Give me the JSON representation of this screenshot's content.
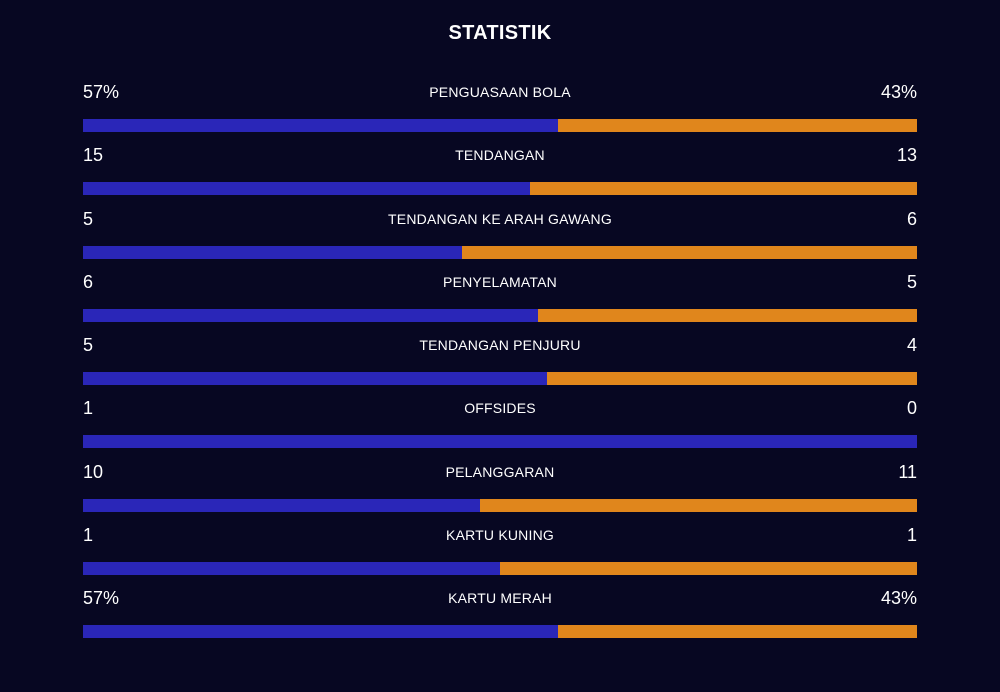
{
  "header": {
    "title": "STATISTIK"
  },
  "colors": {
    "background": "#070722",
    "home_bar": "#2a26b8",
    "away_bar": "#e0861c",
    "text": "#ffffff"
  },
  "stats": [
    {
      "label": "PENGUASAAN BOLA",
      "home": "57%",
      "away": "43%",
      "home_share": 0.57
    },
    {
      "label": "TENDANGAN",
      "home": "15",
      "away": "13",
      "home_share": 0.536
    },
    {
      "label": "TENDANGAN KE ARAH GAWANG",
      "home": "5",
      "away": "6",
      "home_share": 0.455
    },
    {
      "label": "PENYELAMATAN",
      "home": "6",
      "away": "5",
      "home_share": 0.545
    },
    {
      "label": "TENDANGAN PENJURU",
      "home": "5",
      "away": "4",
      "home_share": 0.556
    },
    {
      "label": "OFFSIDES",
      "home": "1",
      "away": "0",
      "home_share": 1.0
    },
    {
      "label": "PELANGGARAN",
      "home": "10",
      "away": "11",
      "home_share": 0.476
    },
    {
      "label": "KARTU KUNING",
      "home": "1",
      "away": "1",
      "home_share": 0.5
    },
    {
      "label": "KARTU MERAH",
      "home": "57%",
      "away": "43%",
      "home_share": 0.57
    }
  ]
}
